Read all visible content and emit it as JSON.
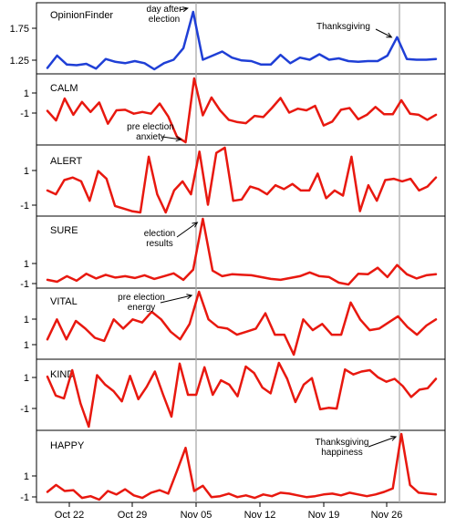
{
  "chart_data": {
    "type": "line",
    "title": "",
    "xlabel": "",
    "x_ticks": [
      "Oct 22",
      "Oct 29",
      "Nov 05",
      "Nov 12",
      "Nov 19",
      "Nov 26"
    ],
    "vlines": [
      "day after election",
      "Thanksgiving"
    ],
    "grid": false,
    "panels": [
      {
        "name": "OpinionFinder",
        "color": "#1f3fd6",
        "yticks": [
          "1.75",
          "1.25"
        ],
        "values": [
          1.18,
          1.36,
          1.23,
          1.22,
          1.24,
          1.17,
          1.31,
          1.27,
          1.25,
          1.28,
          1.25,
          1.16,
          1.25,
          1.3,
          1.47,
          2.0,
          1.3,
          1.36,
          1.42,
          1.33,
          1.29,
          1.28,
          1.23,
          1.23,
          1.37,
          1.25,
          1.33,
          1.3,
          1.38,
          1.3,
          1.32,
          1.28,
          1.27,
          1.28,
          1.28,
          1.36,
          1.63,
          1.31,
          1.3,
          1.3,
          1.31
        ],
        "annotations": [
          {
            "text": "day after\nelection",
            "index": 15
          },
          {
            "text": "Thanksgiving",
            "index": 36
          }
        ]
      },
      {
        "name": "CALM",
        "color": "#e8180f",
        "yticks": [
          "1",
          "-1"
        ],
        "values": [
          0.0,
          -0.85,
          1.1,
          -0.35,
          0.8,
          -0.1,
          0.75,
          -1.15,
          0.05,
          0.1,
          -0.25,
          -0.1,
          -0.25,
          0.65,
          -0.5,
          -2.3,
          -2.8,
          2.9,
          -0.4,
          1.2,
          0.05,
          -0.8,
          -1.0,
          -1.1,
          -0.45,
          -0.55,
          0.25,
          1.15,
          -0.15,
          0.2,
          0.05,
          0.45,
          -1.3,
          -0.95,
          0.1,
          0.25,
          -0.75,
          -0.35,
          0.35,
          -0.3,
          -0.3,
          0.95,
          -0.25,
          -0.35,
          -0.8,
          -0.35
        ],
        "annotations": [
          {
            "text": "pre election\nanxiety",
            "index": 16
          }
        ]
      },
      {
        "name": "ALERT",
        "color": "#e8180f",
        "yticks": [
          "1",
          "-1"
        ],
        "values": [
          -0.2,
          -0.5,
          0.6,
          0.8,
          0.5,
          -1.0,
          1.3,
          0.7,
          -1.4,
          -1.6,
          -1.8,
          -1.9,
          2.4,
          -0.5,
          -1.9,
          -0.2,
          0.5,
          -0.5,
          2.8,
          -1.3,
          2.7,
          3.1,
          -1.0,
          -0.9,
          0.1,
          -0.1,
          -0.5,
          0.2,
          -0.1,
          0.3,
          -0.2,
          -0.2,
          1.1,
          -0.8,
          -0.2,
          -0.6,
          2.4,
          -1.8,
          0.2,
          -1.0,
          0.6,
          0.7,
          0.5,
          0.7,
          -0.2,
          0.1,
          0.8
        ],
        "annotations": []
      },
      {
        "name": "SURE",
        "color": "#e8180f",
        "yticks": [
          "1",
          "-1"
        ],
        "values": [
          -0.6,
          -0.8,
          -0.2,
          -0.7,
          0.05,
          -0.45,
          -0.05,
          -0.35,
          -0.2,
          -0.4,
          -0.1,
          -0.5,
          -0.2,
          0.1,
          -0.6,
          0.5,
          6.0,
          0.4,
          -0.2,
          0.0,
          -0.05,
          -0.1,
          -0.3,
          -0.5,
          -0.6,
          -0.4,
          -0.2,
          0.2,
          -0.2,
          -0.3,
          -0.9,
          -1.1,
          0.05,
          0.0,
          0.7,
          -0.3,
          1.0,
          0.0,
          -0.45,
          -0.1,
          0.0
        ],
        "annotations": [
          {
            "text": "election\nresults",
            "index": 16
          }
        ]
      },
      {
        "name": "VITAL",
        "color": "#e8180f",
        "yticks": [
          "1",
          "1"
        ],
        "values": [
          0.5,
          1.8,
          0.5,
          1.7,
          1.2,
          0.6,
          0.4,
          1.8,
          1.2,
          1.8,
          1.6,
          2.3,
          1.8,
          1.0,
          0.5,
          1.5,
          3.6,
          1.8,
          1.3,
          1.2,
          0.8,
          1.0,
          1.2,
          2.2,
          0.8,
          0.8,
          -0.5,
          1.8,
          1.1,
          1.5,
          0.8,
          0.8,
          2.9,
          1.8,
          1.1,
          1.2,
          1.6,
          2.0,
          1.3,
          0.8,
          1.4,
          1.8
        ],
        "annotations": [
          {
            "text": "pre election\nenergy",
            "index": 16
          }
        ]
      },
      {
        "name": "KIND",
        "color": "#e8180f",
        "yticks": [
          "1",
          "-1"
        ],
        "values": [
          0.45,
          -0.85,
          -1.05,
          0.9,
          -1.4,
          -3.0,
          0.55,
          -0.1,
          -0.55,
          -1.25,
          0.5,
          -1.1,
          -0.25,
          0.8,
          -0.8,
          -2.3,
          1.35,
          -0.8,
          -0.8,
          1.1,
          -0.8,
          0.2,
          -0.1,
          -0.9,
          1.15,
          0.7,
          -0.3,
          -0.7,
          1.4,
          0.3,
          -1.3,
          -0.1,
          0.35,
          -1.8,
          -1.7,
          -1.75,
          0.95,
          0.6,
          0.8,
          0.9,
          0.4,
          0.1,
          0.3,
          -0.2,
          -0.95,
          -0.45,
          -0.35,
          0.3
        ],
        "annotations": []
      },
      {
        "name": "HAPPY",
        "color": "#e8180f",
        "yticks": [
          "1",
          "-1"
        ],
        "values": [
          -0.3,
          0.5,
          -0.2,
          -0.1,
          -1.0,
          -0.8,
          -1.2,
          -0.2,
          -0.6,
          0.0,
          -0.7,
          -1.0,
          -0.4,
          -0.1,
          -0.5,
          2.1,
          4.8,
          -0.2,
          0.4,
          -0.9,
          -0.8,
          -0.5,
          -0.9,
          -0.7,
          -1.0,
          -0.6,
          -0.8,
          -0.4,
          -0.5,
          -0.7,
          -0.9,
          -0.8,
          -0.6,
          -0.5,
          -0.7,
          -0.4,
          -0.6,
          -0.8,
          -0.6,
          -0.3,
          0.1,
          6.4,
          0.5,
          -0.4,
          -0.5,
          -0.6
        ],
        "annotations": [
          {
            "text": "Thanksgiving\nhappiness",
            "index": 41
          }
        ]
      }
    ]
  }
}
